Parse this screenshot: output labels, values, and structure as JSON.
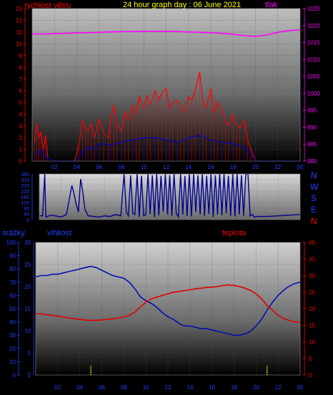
{
  "header": {
    "left_title": "rychlost větru",
    "center_title": "24 hour graph day : 06 June 2021",
    "right_title": "tlak"
  },
  "direction": {
    "letters": [
      "N",
      "W",
      "S",
      "E",
      "N"
    ]
  },
  "bottom_labels": {
    "left1": "srážky",
    "left2": "vlhkost",
    "right": "teplota"
  },
  "colors": {
    "wind_red": "#ff0000",
    "wind_blue": "#0000c8",
    "pressure": "#ff00ff",
    "direction": "#000090",
    "humidity": "#0010b0",
    "temperature": "#e00000",
    "rain": "#ffff00",
    "title": "#ffff00",
    "axis_left": "#ff0000",
    "axis_right": "#ff00ff",
    "axis_blue": "#2040ff"
  },
  "chart_data": [
    {
      "type": "line",
      "name": "wind_and_pressure",
      "xticks": [
        "02",
        "04",
        "06",
        "08",
        "10",
        "12",
        "14",
        "16",
        "18",
        "20",
        "22",
        "00"
      ],
      "xlim": [
        0,
        24
      ],
      "ylim_left": [
        0,
        13
      ],
      "ylim_right": [
        980,
        1025
      ],
      "yticks_left": [
        0,
        1,
        2,
        3,
        4,
        5,
        6,
        7,
        8,
        9,
        10,
        11,
        12,
        13
      ],
      "yticks_right": [
        980,
        985,
        990,
        995,
        1000,
        1005,
        1010,
        1015,
        1020,
        1025
      ],
      "series": [
        {
          "role": "wind_gust",
          "x": [
            0.2,
            0.4,
            0.6,
            0.8,
            1.0,
            1.2,
            1.4,
            2.0,
            3.0,
            3.8,
            4.2,
            4.5,
            4.8,
            5.0,
            5.3,
            5.6,
            6.0,
            6.4,
            6.8,
            7.0,
            7.3,
            7.6,
            8.0,
            8.3,
            8.6,
            9.0,
            9.3,
            9.6,
            10.0,
            10.3,
            10.6,
            11.0,
            11.3,
            11.6,
            12.0,
            12.3,
            12.6,
            13.0,
            13.3,
            13.6,
            14.0,
            14.3,
            14.6,
            15.0,
            15.3,
            15.6,
            16.0,
            16.3,
            16.6,
            17.0,
            17.3,
            17.6,
            18.0,
            18.3,
            18.6,
            19.0,
            19.3,
            19.6,
            20.0,
            21.0,
            22.0,
            23.0,
            24.0
          ],
          "values": [
            1.5,
            3.2,
            2.0,
            2.5,
            1.0,
            2.2,
            0.3,
            0.0,
            0.0,
            0.0,
            1.5,
            3.5,
            2.8,
            2.6,
            3.2,
            2.0,
            3.6,
            2.4,
            2.0,
            3.4,
            4.8,
            3.2,
            2.5,
            4.2,
            3.5,
            4.8,
            4.0,
            5.5,
            4.5,
            5.6,
            4.8,
            6.0,
            5.2,
            5.8,
            6.2,
            4.5,
            5.0,
            5.2,
            4.8,
            4.2,
            5.5,
            5.2,
            6.0,
            7.6,
            5.0,
            4.6,
            6.2,
            4.2,
            5.0,
            4.5,
            3.5,
            3.0,
            4.0,
            3.2,
            2.8,
            3.5,
            1.8,
            1.0,
            0.0,
            0.0,
            0.0,
            0.0,
            0.0
          ]
        },
        {
          "role": "wind_speed",
          "x": [
            0.3,
            0.8,
            1.2,
            2.0,
            4.0,
            4.5,
            5.0,
            5.5,
            6.0,
            7.0,
            8.0,
            9.0,
            10.0,
            11.0,
            12.0,
            13.0,
            14.0,
            15.0,
            16.0,
            17.0,
            18.0,
            19.0,
            19.5,
            20.0,
            24.0
          ],
          "values": [
            0.5,
            1.0,
            0.4,
            0.0,
            0.0,
            0.8,
            1.2,
            1.0,
            1.5,
            1.4,
            1.6,
            1.8,
            2.0,
            2.0,
            1.8,
            1.6,
            2.0,
            2.2,
            1.8,
            1.6,
            1.5,
            1.2,
            0.8,
            0.0,
            0.0
          ]
        },
        {
          "role": "pressure",
          "axis": "right",
          "x": [
            0,
            1,
            2,
            3,
            4,
            5,
            6,
            7,
            8,
            9,
            10,
            11,
            12,
            13,
            14,
            15,
            16,
            17,
            18,
            19,
            20,
            21,
            22,
            23,
            24
          ],
          "values": [
            1017.5,
            1017.5,
            1017.6,
            1017.7,
            1017.8,
            1017.9,
            1018.0,
            1018.1,
            1018.2,
            1018.2,
            1018.3,
            1018.3,
            1018.3,
            1018.2,
            1018.1,
            1018.0,
            1017.9,
            1017.7,
            1017.4,
            1017.0,
            1016.8,
            1017.2,
            1018.0,
            1018.5,
            1018.8
          ]
        }
      ]
    },
    {
      "type": "line",
      "name": "wind_direction",
      "xlim": [
        0,
        24
      ],
      "ylim": [
        0,
        360
      ],
      "yticks": [
        0,
        45,
        90,
        135,
        180,
        225,
        270,
        315,
        360
      ],
      "series": [
        {
          "role": "direction",
          "x": [
            0,
            0.3,
            0.5,
            0.6,
            0.8,
            1.0,
            1.5,
            2.0,
            2.5,
            2.8,
            3.0,
            3.2,
            3.4,
            3.6,
            3.8,
            4.0,
            4.2,
            4.5,
            5.0,
            5.5,
            6.0,
            6.5,
            7.0,
            7.5,
            7.8,
            8.0,
            8.2,
            8.4,
            8.6,
            8.8,
            9.0,
            9.2,
            9.4,
            9.6,
            9.8,
            10.0,
            10.2,
            10.4,
            10.6,
            10.8,
            11.0,
            11.2,
            11.4,
            11.6,
            11.8,
            12.0,
            12.2,
            12.4,
            12.6,
            12.8,
            13.0,
            13.2,
            13.4,
            13.6,
            13.8,
            14.0,
            14.2,
            14.4,
            14.6,
            14.8,
            15.0,
            15.2,
            15.4,
            15.6,
            15.8,
            16.0,
            16.2,
            16.4,
            16.6,
            16.8,
            17.0,
            17.2,
            17.4,
            17.6,
            17.8,
            18.0,
            18.2,
            18.4,
            18.6,
            18.8,
            19.0,
            19.2,
            19.4,
            19.6,
            19.8,
            20.0,
            21.0,
            22.0,
            23.0,
            24.0
          ],
          "values": [
            30,
            30,
            360,
            20,
            25,
            35,
            30,
            20,
            40,
            180,
            270,
            200,
            120,
            60,
            320,
            220,
            80,
            30,
            25,
            20,
            30,
            25,
            40,
            30,
            360,
            60,
            30,
            350,
            50,
            40,
            360,
            20,
            345,
            30,
            40,
            360,
            45,
            350,
            20,
            360,
            35,
            345,
            60,
            360,
            40,
            350,
            30,
            360,
            50,
            20,
            360,
            40,
            345,
            30,
            360,
            25,
            360,
            60,
            350,
            40,
            360,
            30,
            345,
            45,
            360,
            20,
            350,
            40,
            360,
            35,
            360,
            50,
            345,
            30,
            360,
            25,
            360,
            40,
            350,
            30,
            360,
            360,
            30,
            40,
            20,
            25,
            25,
            30,
            35,
            40
          ]
        }
      ]
    },
    {
      "type": "line",
      "name": "humidity_temperature_rain",
      "xlim": [
        0,
        24
      ],
      "ylim_outer_left": [
        0,
        100
      ],
      "ylim_inner_left": [
        0,
        30
      ],
      "ylim_right": [
        0,
        40
      ],
      "yticks_outer_left": [
        0,
        10,
        20,
        30,
        40,
        50,
        60,
        70,
        80,
        90,
        100
      ],
      "yticks_inner_left": [
        0,
        5,
        10,
        15,
        20,
        25,
        30
      ],
      "yticks_right": [
        0,
        5,
        10,
        15,
        20,
        25,
        30,
        35,
        40
      ],
      "series": [
        {
          "role": "humidity",
          "axis": "outer_left",
          "x": [
            0,
            0.5,
            1,
            1.5,
            2,
            2.5,
            3,
            3.5,
            4,
            4.5,
            5,
            5.5,
            6,
            6.5,
            7,
            7.5,
            8,
            8.5,
            9,
            9.5,
            10,
            10.5,
            11,
            11.5,
            12,
            12.5,
            13,
            13.5,
            14,
            14.5,
            15,
            15.5,
            16,
            16.5,
            17,
            17.5,
            18,
            18.5,
            19,
            19.5,
            20,
            20.5,
            21,
            21.5,
            22,
            22.5,
            23,
            23.5,
            24
          ],
          "values": [
            74,
            75,
            75,
            76,
            76,
            77,
            78,
            79,
            80,
            81,
            82,
            81,
            79,
            77,
            75,
            74,
            73,
            70,
            65,
            59,
            56,
            54,
            51,
            47,
            44,
            42,
            39,
            37,
            37,
            36,
            35,
            35,
            34,
            33,
            32,
            31,
            30,
            30,
            31,
            33,
            37,
            42,
            49,
            55,
            60,
            64,
            67,
            69,
            70
          ]
        },
        {
          "role": "temperature",
          "axis": "right",
          "x": [
            0,
            0.5,
            1,
            1.5,
            2,
            2.5,
            3,
            3.5,
            4,
            4.5,
            5,
            5.5,
            6,
            6.5,
            7,
            7.5,
            8,
            8.5,
            9,
            9.5,
            10,
            10.5,
            11,
            11.5,
            12,
            12.5,
            13,
            13.5,
            14,
            14.5,
            15,
            15.5,
            16,
            16.5,
            17,
            17.5,
            18,
            18.5,
            19,
            19.5,
            20,
            20.5,
            21,
            21.5,
            22,
            22.5,
            23,
            23.5,
            24
          ],
          "values": [
            18.5,
            18.5,
            18.2,
            18.0,
            17.8,
            17.5,
            17.2,
            17.0,
            16.8,
            16.6,
            16.5,
            16.5,
            16.6,
            16.8,
            17.0,
            17.2,
            17.5,
            18.0,
            19.0,
            20.5,
            22.0,
            23.0,
            23.5,
            24.0,
            24.5,
            25.0,
            25.2,
            25.5,
            25.7,
            26.0,
            26.2,
            26.4,
            26.5,
            26.7,
            27.0,
            27.2,
            27.0,
            26.7,
            26.2,
            25.5,
            24.5,
            23.0,
            21.0,
            19.5,
            18.0,
            17.0,
            16.5,
            16.0,
            16.0
          ]
        },
        {
          "role": "rain",
          "axis": "outer_left",
          "x": [
            5.0,
            21.0
          ],
          "values": [
            7,
            7
          ]
        }
      ]
    }
  ]
}
